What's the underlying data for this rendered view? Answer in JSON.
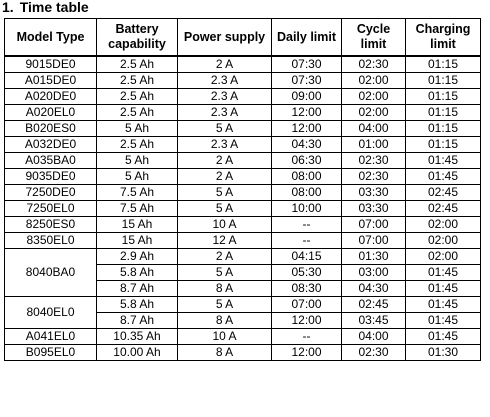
{
  "heading": {
    "number": "1.",
    "title": "Time table"
  },
  "table": {
    "headers": {
      "model": [
        "Model Type"
      ],
      "battery": [
        "Battery",
        "capability"
      ],
      "power": [
        "Power supply"
      ],
      "daily": [
        "Daily limit"
      ],
      "cycle": [
        "Cycle",
        "limit"
      ],
      "charging": [
        "Charging",
        "limit"
      ]
    },
    "groups": [
      {
        "model": "9015DE0",
        "rows": [
          [
            "2.5 Ah",
            "2 A",
            "07:30",
            "02:30",
            "01:15"
          ]
        ]
      },
      {
        "model": "A015DE0",
        "rows": [
          [
            "2.5 Ah",
            "2.3 A",
            "07:30",
            "02:00",
            "01:15"
          ]
        ]
      },
      {
        "model": "A020DE0",
        "rows": [
          [
            "2.5 Ah",
            "2.3 A",
            "09:00",
            "02:00",
            "01:15"
          ]
        ]
      },
      {
        "model": "A020EL0",
        "rows": [
          [
            "2.5 Ah",
            "2.3 A",
            "12:00",
            "02:00",
            "01:15"
          ]
        ]
      },
      {
        "model": "B020ES0",
        "rows": [
          [
            "5 Ah",
            "5 A",
            "12:00",
            "04:00",
            "01:15"
          ]
        ]
      },
      {
        "model": "A032DE0",
        "rows": [
          [
            "2.5 Ah",
            "2.3 A",
            "04:30",
            "01:00",
            "01:15"
          ]
        ]
      },
      {
        "model": "A035BA0",
        "rows": [
          [
            "5 Ah",
            "2 A",
            "06:30",
            "02:30",
            "01:45"
          ]
        ]
      },
      {
        "model": "9035DE0",
        "rows": [
          [
            "5 Ah",
            "2 A",
            "08:00",
            "02:30",
            "01:45"
          ]
        ]
      },
      {
        "model": "7250DE0",
        "rows": [
          [
            "7.5 Ah",
            "5 A",
            "08:00",
            "03:30",
            "02:45"
          ]
        ]
      },
      {
        "model": "7250EL0",
        "rows": [
          [
            "7.5 Ah",
            "5 A",
            "10:00",
            "03:30",
            "02:45"
          ]
        ]
      },
      {
        "model": "8250ES0",
        "rows": [
          [
            "15 Ah",
            "10 A",
            "--",
            "07:00",
            "02:00"
          ]
        ]
      },
      {
        "model": "8350EL0",
        "rows": [
          [
            "15 Ah",
            "12 A",
            "--",
            "07:00",
            "02:00"
          ]
        ]
      },
      {
        "model": "8040BA0",
        "rows": [
          [
            "2.9 Ah",
            "2 A",
            "04:15",
            "01:30",
            "02:00"
          ],
          [
            "5.8 Ah",
            "5 A",
            "05:30",
            "03:00",
            "01:45"
          ],
          [
            "8.7 Ah",
            "8 A",
            "08:30",
            "04:30",
            "01:45"
          ]
        ]
      },
      {
        "model": "8040EL0",
        "rows": [
          [
            "5.8 Ah",
            "5 A",
            "07:00",
            "02:45",
            "01:45"
          ],
          [
            "8.7 Ah",
            "8 A",
            "12:00",
            "03:45",
            "01:45"
          ]
        ]
      },
      {
        "model": "A041EL0",
        "rows": [
          [
            "10.35 Ah",
            "10 A",
            "--",
            "04:00",
            "01:45"
          ]
        ]
      },
      {
        "model": "B095EL0",
        "rows": [
          [
            "10.00 Ah",
            "8 A",
            "12:00",
            "02:30",
            "01:30"
          ]
        ]
      }
    ]
  }
}
